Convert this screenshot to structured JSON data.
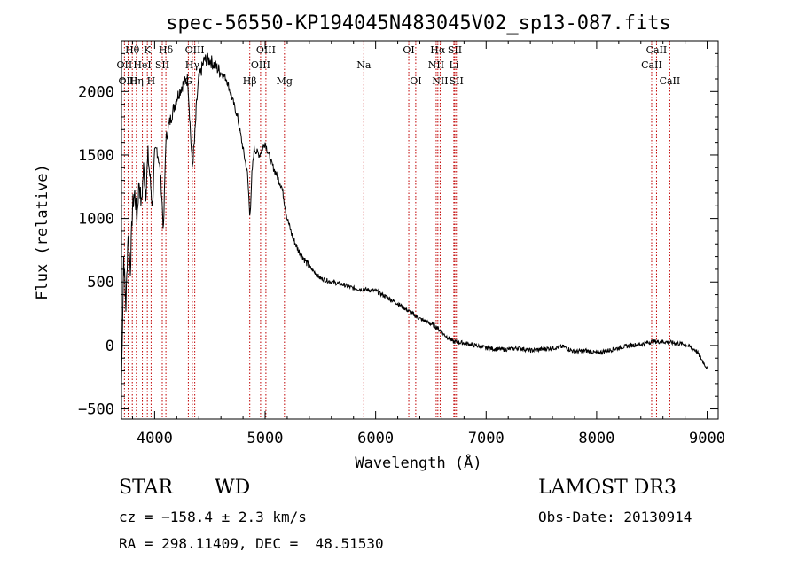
{
  "chart_data": {
    "type": "line",
    "title": "spec-56550-KP194045N483045V02_sp13-087.fits",
    "xlabel": "Wavelength (Å)",
    "ylabel": "Flux (relative)",
    "xlim": [
      3700,
      9100
    ],
    "ylim": [
      -580,
      2400
    ],
    "xticks": [
      4000,
      5000,
      6000,
      7000,
      8000,
      9000
    ],
    "yticks": [
      -500,
      0,
      500,
      1000,
      1500,
      2000
    ],
    "series": [
      {
        "name": "flux",
        "x": [
          3700,
          3720,
          3740,
          3760,
          3780,
          3800,
          3820,
          3840,
          3860,
          3880,
          3900,
          3920,
          3940,
          3960,
          3980,
          4000,
          4020,
          4040,
          4060,
          4080,
          4100,
          4120,
          4150,
          4200,
          4250,
          4300,
          4320,
          4340,
          4360,
          4380,
          4400,
          4450,
          4500,
          4550,
          4600,
          4650,
          4700,
          4750,
          4800,
          4840,
          4860,
          4870,
          4880,
          4900,
          4950,
          5000,
          5050,
          5100,
          5150,
          5200,
          5250,
          5300,
          5400,
          5500,
          5600,
          5700,
          5800,
          5900,
          6000,
          6100,
          6200,
          6300,
          6400,
          6500,
          6560,
          6600,
          6700,
          6800,
          6900,
          7000,
          7100,
          7200,
          7300,
          7400,
          7500,
          7600,
          7700,
          7800,
          7900,
          8000,
          8100,
          8200,
          8300,
          8400,
          8500,
          8600,
          8700,
          8800,
          8900,
          9000
        ],
        "values": [
          -300,
          700,
          300,
          900,
          600,
          1100,
          1200,
          1000,
          1300,
          1100,
          1400,
          1200,
          1500,
          1300,
          1100,
          1500,
          1550,
          1450,
          1250,
          900,
          1600,
          1700,
          1800,
          1950,
          2050,
          2100,
          1750,
          1400,
          1600,
          1900,
          2100,
          2250,
          2250,
          2200,
          2150,
          2100,
          1950,
          1800,
          1550,
          1350,
          1050,
          1100,
          1350,
          1550,
          1500,
          1600,
          1450,
          1350,
          1250,
          1000,
          850,
          750,
          620,
          530,
          500,
          480,
          450,
          440,
          430,
          380,
          330,
          270,
          210,
          170,
          140,
          100,
          30,
          20,
          0,
          -20,
          -30,
          -30,
          -20,
          -40,
          -30,
          -20,
          -10,
          -50,
          -40,
          -60,
          -40,
          -20,
          0,
          10,
          30,
          30,
          20,
          10,
          -40,
          -180
        ]
      }
    ],
    "lines": [
      {
        "name": "Hθ",
        "wave": 3798,
        "row": 0
      },
      {
        "name": "OII",
        "wave": 3727,
        "row": 1
      },
      {
        "name": "OIII",
        "wave": 3760,
        "row": 2
      },
      {
        "name": "K",
        "wave": 3934,
        "row": 0
      },
      {
        "name": "HeI",
        "wave": 3889,
        "row": 1
      },
      {
        "name": "Hη",
        "wave": 3835,
        "row": 2
      },
      {
        "name": "SII",
        "wave": 4069,
        "row": 1
      },
      {
        "name": "H",
        "wave": 3968,
        "row": 2
      },
      {
        "name": "Hδ",
        "wave": 4102,
        "row": 0
      },
      {
        "name": "OIII",
        "wave": 4363,
        "row": 0
      },
      {
        "name": "Hγ",
        "wave": 4341,
        "row": 1
      },
      {
        "name": "G",
        "wave": 4305,
        "row": 2
      },
      {
        "name": "Hβ",
        "wave": 4861,
        "row": 2
      },
      {
        "name": "OIII",
        "wave": 5007,
        "row": 0
      },
      {
        "name": "OIII",
        "wave": 4959,
        "row": 1
      },
      {
        "name": "Mg",
        "wave": 5175,
        "row": 2
      },
      {
        "name": "Na",
        "wave": 5893,
        "row": 1
      },
      {
        "name": "OI",
        "wave": 6300,
        "row": 0
      },
      {
        "name": "OI",
        "wave": 6363,
        "row": 2
      },
      {
        "name": "Hα",
        "wave": 6563,
        "row": 0
      },
      {
        "name": "NII",
        "wave": 6548,
        "row": 1
      },
      {
        "name": "NII",
        "wave": 6584,
        "row": 2
      },
      {
        "name": "SII",
        "wave": 6717,
        "row": 0
      },
      {
        "name": "Li",
        "wave": 6708,
        "row": 1
      },
      {
        "name": "SII",
        "wave": 6731,
        "row": 2
      },
      {
        "name": "CaII",
        "wave": 8542,
        "row": 0
      },
      {
        "name": "CaII",
        "wave": 8498,
        "row": 1
      },
      {
        "name": "CaII",
        "wave": 8662,
        "row": 2
      }
    ]
  },
  "info": {
    "object_class": "STAR",
    "subclass": "WD",
    "survey": "LAMOST DR3",
    "cz_line": "cz = −158.4 ± 2.3 km/s",
    "obs_date_line": "Obs-Date: 20130914",
    "radec_line": "RA = 298.11409, DEC =  48.51530"
  }
}
